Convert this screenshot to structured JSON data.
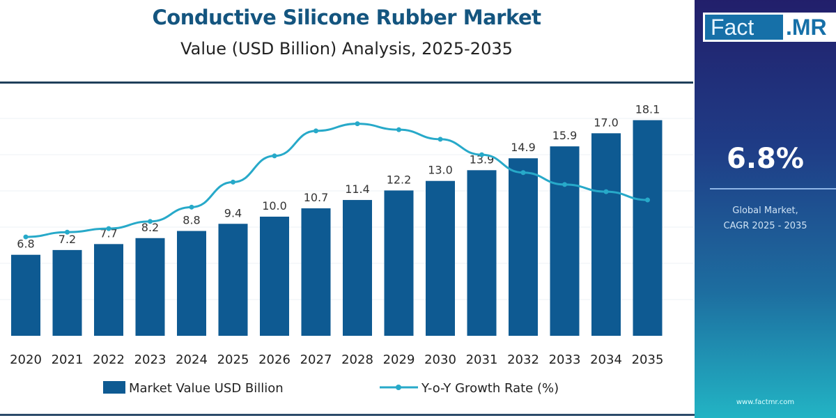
{
  "title": "Conductive Silicone Rubber Market",
  "subtitle": "Value (USD Billion) Analysis, 2025-2035",
  "panel": {
    "logo_left": "Fact",
    "logo_right": ".MR",
    "cagr": "6.8%",
    "label_line1": "Global Market,",
    "label_line2": "CAGR 2025 - 2035",
    "website": "www.factmr.com"
  },
  "colors": {
    "bar": "#0e5a92",
    "line": "#27a9c9",
    "title": "#14557f"
  },
  "chart_data": {
    "type": "bar",
    "categories": [
      "2020",
      "2021",
      "2022",
      "2023",
      "2024",
      "2025",
      "2026",
      "2027",
      "2028",
      "2029",
      "2030",
      "2031",
      "2032",
      "2033",
      "2034",
      "2035"
    ],
    "series": [
      {
        "name": "Market Value USD Billion",
        "type": "bar",
        "values": [
          6.8,
          7.2,
          7.7,
          8.2,
          8.8,
          9.4,
          10.0,
          10.7,
          11.4,
          12.2,
          13.0,
          13.9,
          14.9,
          15.9,
          17.0,
          18.1
        ],
        "labels": [
          "6.8",
          "7.2",
          "7.7",
          "8.2",
          "8.8",
          "9.4",
          "10.0",
          "10.7",
          "11.4",
          "12.2",
          "13.0",
          "13.9",
          "14.9",
          "15.9",
          "17.0",
          "18.1"
        ]
      },
      {
        "name": "Y-o-Y Growth Rate (%)",
        "type": "line",
        "values": [
          8.3,
          8.7,
          9.0,
          9.6,
          10.8,
          12.9,
          15.1,
          17.2,
          17.8,
          17.3,
          16.5,
          15.2,
          13.7,
          12.7,
          12.1,
          11.4
        ]
      }
    ],
    "ylim": [
      0,
      19
    ],
    "y_axis_shown": false,
    "grid": true,
    "legend": "bottom"
  }
}
